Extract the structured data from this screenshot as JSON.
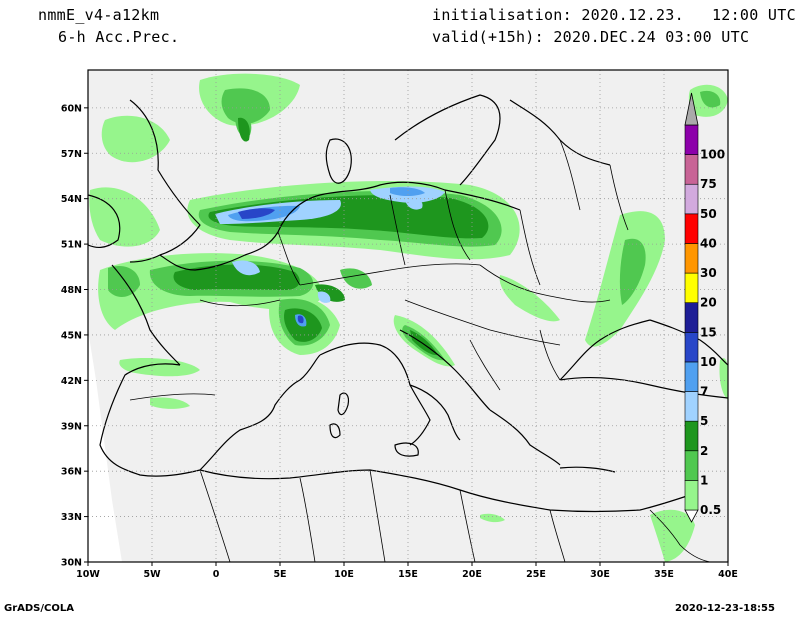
{
  "header": {
    "model": "nmmE_v4-a12km",
    "field": "6-h Acc.Prec.",
    "init_label": "initialisation:",
    "init_value": "2020.12.23.   12:00 UTC",
    "valid_label": "valid(+15h):",
    "valid_value": "2020.DEC.24 03:00 UTC"
  },
  "footer": {
    "left": "GrADS/COLA",
    "right": "2020-12-23-18:55"
  },
  "axes": {
    "lon_labels": [
      "10W",
      "5W",
      "0",
      "5E",
      "10E",
      "15E",
      "20E",
      "25E",
      "30E",
      "35E",
      "40E"
    ],
    "lon_values": [
      -10,
      -5,
      0,
      5,
      10,
      15,
      20,
      25,
      30,
      35,
      40
    ],
    "lat_labels": [
      "30N",
      "33N",
      "36N",
      "39N",
      "42N",
      "45N",
      "48N",
      "51N",
      "54N",
      "57N",
      "60N"
    ],
    "lat_values": [
      30,
      33,
      36,
      39,
      42,
      45,
      48,
      51,
      54,
      57,
      60
    ],
    "lon_range": [
      -10,
      40
    ],
    "lat_range": [
      30,
      62.5
    ],
    "grid": true
  },
  "colorbar": {
    "levels": [
      "0.5",
      "1",
      "2",
      "5",
      "7",
      "10",
      "15",
      "20",
      "30",
      "40",
      "50",
      "75",
      "100"
    ],
    "colors": [
      "#96f58c",
      "#50c850",
      "#1e961e",
      "#a0d2ff",
      "#50a0f0",
      "#2846c8",
      "#1e1e96",
      "#ffff00",
      "#ff9600",
      "#ff0000",
      "#d2aade",
      "#c86496",
      "#8c00aa"
    ],
    "cap_color": "#aaaaaa"
  },
  "colors": {
    "land_background": "#f0f0f0",
    "border": "#000000"
  }
}
